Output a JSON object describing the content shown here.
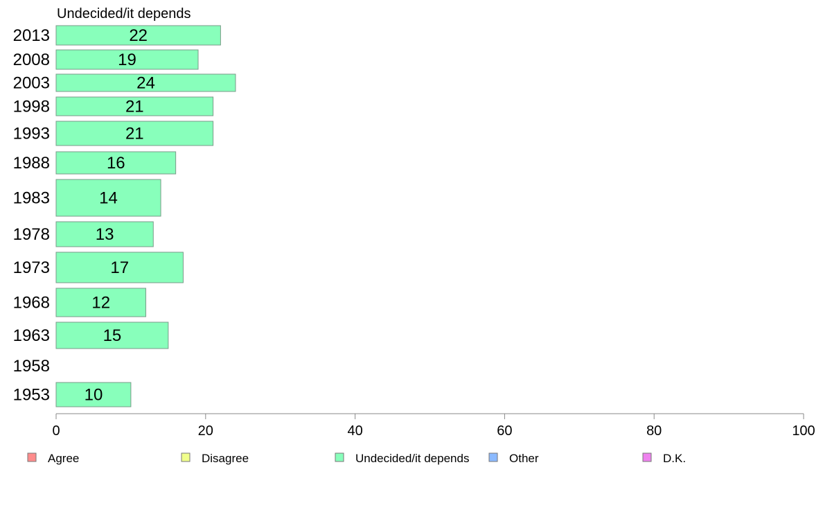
{
  "chart_data": {
    "type": "bar",
    "orientation": "horizontal",
    "title": "Undecided/it depends",
    "categories": [
      "2013",
      "2008",
      "2003",
      "1998",
      "1993",
      "1988",
      "1983",
      "1978",
      "1973",
      "1968",
      "1963",
      "1958",
      "1953"
    ],
    "series": [
      {
        "name": "Undecided/it depends",
        "color": "#88ffbb",
        "values": [
          22,
          19,
          24,
          21,
          21,
          16,
          14,
          13,
          17,
          12,
          15,
          null,
          10
        ],
        "labels": [
          "22",
          "19",
          "24",
          "21",
          "21",
          "16",
          "14",
          "13",
          "17",
          "12",
          "15",
          "",
          "10"
        ]
      }
    ],
    "xlim": [
      0,
      100
    ],
    "xticks": [
      0,
      20,
      40,
      60,
      80,
      100
    ],
    "xtick_labels": [
      "0",
      "20",
      "40",
      "60",
      "80",
      "100"
    ],
    "grid": false,
    "legend": {
      "placement": "bottom",
      "entries": [
        {
          "label": "Agree",
          "color": "#ff8c8c"
        },
        {
          "label": "Disagree",
          "color": "#f0ff8c"
        },
        {
          "label": "Undecided/it depends",
          "color": "#88ffbb"
        },
        {
          "label": "Other",
          "color": "#8cbaff"
        },
        {
          "label": "D.K.",
          "color": "#ee82ee"
        }
      ]
    }
  }
}
